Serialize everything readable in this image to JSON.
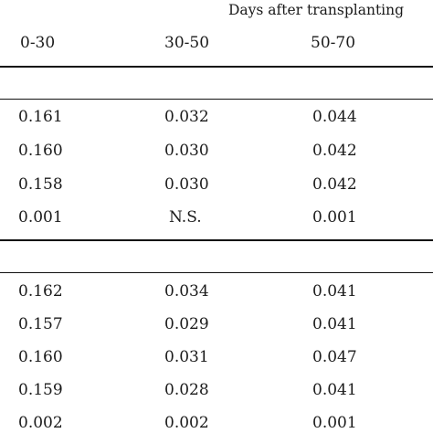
{
  "table": {
    "group_header": "Days after transplanting",
    "columns": [
      "0-30",
      "30-50",
      "50-70"
    ],
    "sections": [
      {
        "rows": [
          [
            "0.161",
            "0.032",
            "0.044"
          ],
          [
            "0.160",
            "0.030",
            "0.042"
          ],
          [
            "0.158",
            "0.030",
            "0.042"
          ],
          [
            "0.001",
            "N.S.",
            "0.001"
          ]
        ]
      },
      {
        "rows": [
          [
            "0.162",
            "0.034",
            "0.041"
          ],
          [
            "0.157",
            "0.029",
            "0.041"
          ],
          [
            "0.160",
            "0.031",
            "0.047"
          ],
          [
            "0.159",
            "0.028",
            "0.041"
          ],
          [
            "0.002",
            "0.002",
            "0.001"
          ]
        ]
      }
    ]
  }
}
